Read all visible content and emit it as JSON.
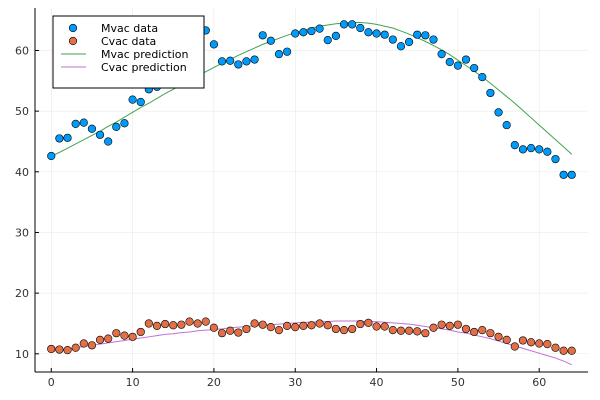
{
  "chart_data": {
    "type": "scatter",
    "title": "",
    "xlabel": "",
    "ylabel": "",
    "xlim": [
      -2,
      66
    ],
    "ylim": [
      7,
      67
    ],
    "xticks": [
      0,
      10,
      20,
      30,
      40,
      50,
      60
    ],
    "yticks": [
      10,
      20,
      30,
      40,
      50,
      60
    ],
    "grid": true,
    "legend_position": "top-left",
    "x": [
      0,
      1,
      2,
      3,
      4,
      5,
      6,
      7,
      8,
      9,
      10,
      11,
      12,
      13,
      14,
      15,
      16,
      17,
      18,
      19,
      20,
      21,
      22,
      23,
      24,
      25,
      26,
      27,
      28,
      29,
      30,
      31,
      32,
      33,
      34,
      35,
      36,
      37,
      38,
      39,
      40,
      41,
      42,
      43,
      44,
      45,
      46,
      47,
      48,
      49,
      50,
      51,
      52,
      53,
      54,
      55,
      56,
      57,
      58,
      59,
      60,
      61,
      62,
      63,
      64
    ],
    "series": [
      {
        "name": "Mvac data",
        "kind": "scatter",
        "color": "#009AFA",
        "values": [
          42.6,
          45.5,
          45.6,
          47.9,
          48.1,
          47.1,
          46.1,
          45.0,
          47.4,
          48.0,
          51.9,
          51.5,
          53.6,
          54.0,
          55.6,
          56.7,
          57.8,
          59.9,
          61.2,
          63.3,
          61.0,
          58.2,
          58.3,
          57.7,
          58.2,
          58.5,
          62.5,
          61.6,
          59.4,
          59.8,
          62.8,
          63.0,
          63.2,
          63.6,
          61.7,
          62.4,
          64.3,
          64.3,
          63.7,
          63.0,
          62.8,
          62.6,
          61.8,
          60.7,
          61.4,
          62.6,
          62.5,
          61.8,
          59.4,
          58.1,
          57.5,
          58.5,
          57.1,
          55.6,
          53.0,
          49.8,
          47.7,
          44.4,
          43.7,
          43.9,
          43.7,
          43.3,
          42.1,
          39.5,
          39.5
        ]
      },
      {
        "name": "Cvac data",
        "kind": "scatter",
        "color": "#E26F46",
        "values": [
          10.8,
          10.7,
          10.6,
          11.0,
          11.7,
          11.4,
          12.3,
          12.5,
          13.4,
          13.0,
          12.8,
          13.6,
          15.0,
          14.6,
          14.9,
          14.7,
          14.8,
          15.3,
          15.0,
          15.3,
          14.3,
          13.4,
          13.8,
          13.5,
          14.1,
          15.0,
          14.8,
          14.4,
          13.9,
          14.6,
          14.4,
          14.6,
          14.7,
          15.0,
          14.7,
          14.1,
          13.9,
          14.1,
          14.9,
          15.1,
          14.5,
          14.5,
          13.9,
          13.8,
          13.8,
          13.7,
          13.4,
          14.3,
          14.8,
          14.6,
          14.8,
          14.1,
          13.6,
          13.9,
          13.4,
          12.8,
          12.3,
          11.2,
          12.2,
          11.9,
          11.7,
          11.6,
          11.0,
          10.5,
          10.5
        ]
      },
      {
        "name": "Mvac prediction",
        "kind": "line",
        "color": "#3DA44D",
        "values": [
          42.6,
          43.2,
          43.9,
          44.6,
          45.3,
          46.0,
          46.7,
          47.5,
          48.2,
          49.0,
          49.8,
          50.6,
          51.3,
          52.1,
          52.9,
          53.6,
          54.4,
          55.1,
          55.8,
          56.5,
          57.2,
          57.9,
          58.5,
          59.2,
          59.8,
          60.4,
          61.0,
          61.5,
          62.0,
          62.5,
          62.9,
          63.3,
          63.7,
          64.0,
          64.2,
          64.4,
          64.5,
          64.6,
          64.6,
          64.5,
          64.3,
          64.0,
          63.7,
          63.2,
          62.7,
          62.1,
          61.5,
          60.8,
          60.1,
          59.3,
          58.4,
          57.5,
          56.6,
          55.6,
          54.6,
          53.5,
          52.4,
          51.3,
          50.1,
          48.9,
          47.7,
          46.5,
          45.3,
          44.1,
          42.9
        ]
      },
      {
        "name": "Cvac prediction",
        "kind": "line",
        "color": "#C271D2",
        "values": [
          10.4,
          10.6,
          10.8,
          11.0,
          11.2,
          11.4,
          11.6,
          11.8,
          12.0,
          12.2,
          12.4,
          12.6,
          12.8,
          13.0,
          13.2,
          13.3,
          13.5,
          13.6,
          13.8,
          13.9,
          14.0,
          14.1,
          14.3,
          14.4,
          14.5,
          14.6,
          14.7,
          14.8,
          14.9,
          15.0,
          15.1,
          15.2,
          15.2,
          15.3,
          15.3,
          15.4,
          15.4,
          15.4,
          15.4,
          15.3,
          15.3,
          15.2,
          15.1,
          15.0,
          14.9,
          14.7,
          14.5,
          14.3,
          14.1,
          13.9,
          13.6,
          13.4,
          13.1,
          12.8,
          12.5,
          12.1,
          11.7,
          11.3,
          10.9,
          10.5,
          10.1,
          9.7,
          9.3,
          8.8,
          8.2
        ]
      }
    ]
  }
}
